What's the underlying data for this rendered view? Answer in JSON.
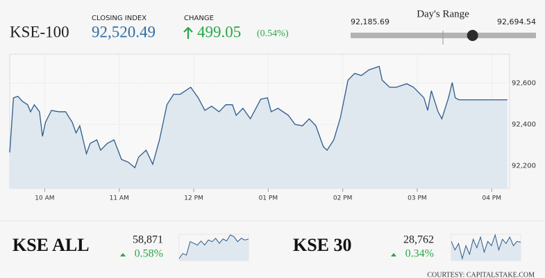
{
  "header": {
    "name": "KSE-100",
    "close_title": "CLOSING INDEX",
    "close": {
      "value": 92520.49,
      "label": "92,520.49"
    },
    "change_title": "CHANGE",
    "change": 499.05,
    "change_pct": "(0.54%)",
    "range_title": "Day's Range",
    "range_low": {
      "value": 92185.69,
      "label": "92,185.69"
    },
    "range_high": {
      "value": 92694.54,
      "label": "92,694.54"
    }
  },
  "chart_data": {
    "type": "line",
    "color": "#2d5a8a",
    "fill": "#dfe7ef",
    "x": [
      9.53,
      9.58,
      9.64,
      9.7,
      9.77,
      9.81,
      9.86,
      9.93,
      9.97,
      10.01,
      10.09,
      10.19,
      10.28,
      10.37,
      10.42,
      10.47,
      10.56,
      10.61,
      10.7,
      10.75,
      10.84,
      10.93,
      11.03,
      11.12,
      11.21,
      11.26,
      11.36,
      11.45,
      11.54,
      11.64,
      11.73,
      11.82,
      11.96,
      12.06,
      12.15,
      12.24,
      12.34,
      12.43,
      12.52,
      12.57,
      12.66,
      12.76,
      12.9,
      12.99,
      13.04,
      13.13,
      13.27,
      13.36,
      13.46,
      13.55,
      13.64,
      13.74,
      13.79,
      13.88,
      13.97,
      14.07,
      14.16,
      14.25,
      14.35,
      14.49,
      14.53,
      14.63,
      14.72,
      14.86,
      14.95,
      15.09,
      15.14,
      15.19,
      15.28,
      15.33,
      15.42,
      15.47,
      15.51,
      15.56,
      16.21
    ],
    "values": [
      92264,
      92529,
      92536,
      92512,
      92495,
      92461,
      92495,
      92461,
      92342,
      92410,
      92468,
      92461,
      92461,
      92410,
      92359,
      92393,
      92258,
      92308,
      92325,
      92275,
      92308,
      92325,
      92230,
      92217,
      92190,
      92241,
      92275,
      92207,
      92325,
      92495,
      92546,
      92546,
      92580,
      92529,
      92468,
      92488,
      92461,
      92495,
      92495,
      92444,
      92478,
      92427,
      92522,
      92529,
      92461,
      92478,
      92444,
      92400,
      92393,
      92427,
      92393,
      92292,
      92275,
      92325,
      92434,
      92614,
      92647,
      92637,
      92664,
      92681,
      92614,
      92580,
      92580,
      92597,
      92580,
      92529,
      92468,
      92563,
      92461,
      92427,
      92529,
      92603,
      92529,
      92519,
      92519
    ],
    "xlim": [
      9.53,
      16.24
    ],
    "ylim": [
      92090,
      92740
    ],
    "xticks": [
      {
        "value": 10,
        "label": "10 AM"
      },
      {
        "value": 11,
        "label": "11 AM"
      },
      {
        "value": 12,
        "label": "12 PM"
      },
      {
        "value": 13,
        "label": "01 PM"
      },
      {
        "value": 14,
        "label": "02 PM"
      },
      {
        "value": 15,
        "label": "03 PM"
      },
      {
        "value": 16,
        "label": "04 PM"
      }
    ],
    "yticks": [
      {
        "value": 92200,
        "label": "92,200"
      },
      {
        "value": 92400,
        "label": "92,400"
      },
      {
        "value": 92600,
        "label": "92,600"
      }
    ],
    "grid": true
  },
  "indices": [
    {
      "name": "KSE ALL",
      "value": "58,871",
      "change": "0.58%",
      "spark": [
        20,
        35,
        30,
        70,
        65,
        60,
        72,
        60,
        75,
        70,
        80,
        65,
        78,
        72,
        90,
        85,
        70,
        80,
        75,
        78
      ]
    },
    {
      "name": "KSE 30",
      "value": "28,762",
      "change": "0.34%",
      "spark": [
        70,
        50,
        65,
        30,
        60,
        40,
        75,
        55,
        80,
        45,
        70,
        60,
        85,
        50,
        75,
        65,
        80,
        60,
        70,
        68
      ]
    }
  ],
  "footer": "COURTESY: CAPITALSTAKE.COM"
}
